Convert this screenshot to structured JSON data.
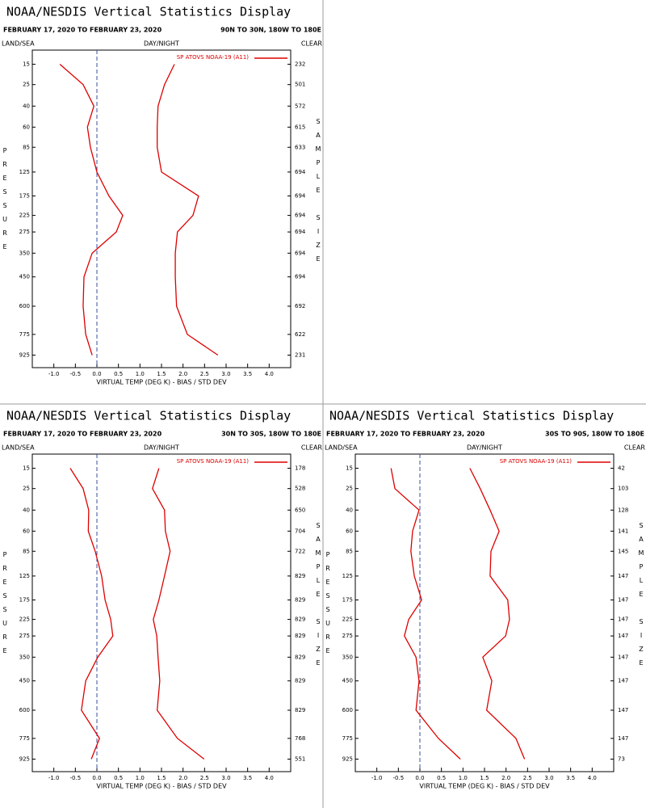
{
  "chart_data": [
    {
      "type": "line",
      "title": "NOAA/NESDIS Vertical Statistics Display",
      "subtitle": "FEBRUARY 17, 2020 TO FEBRUARY 23, 2020",
      "region": "90N TO 30N, 180W TO 180E",
      "header_left": "LAND/SEA",
      "header_center": "DAY/NIGHT",
      "header_right": "CLEAR",
      "y_label": "PRESSURE",
      "y2_label": "SAMPLE SIZE",
      "x_label": "VIRTUAL TEMP (DEG K) - BIAS / STD DEV",
      "y": [
        15,
        25,
        40,
        60,
        85,
        125,
        175,
        225,
        275,
        350,
        450,
        600,
        775,
        925
      ],
      "y2_labels": [
        232,
        501,
        572,
        615,
        633,
        694,
        694,
        694,
        694,
        694,
        694,
        692,
        622,
        231
      ],
      "ylim": [
        10,
        1025
      ],
      "yscale": "pressure-kappa",
      "xlim": [
        -1.5,
        4.5
      ],
      "xticks": [
        {
          "value": -1,
          "label": "-1.0"
        },
        -0.5,
        {
          "value": 0,
          "label": "0.0"
        },
        0.5,
        {
          "value": 1,
          "label": "1.0"
        },
        1.5,
        {
          "value": 2,
          "label": "2.0"
        },
        2.5,
        {
          "value": 3,
          "label": "3.0"
        },
        3.5,
        {
          "value": 4,
          "label": "4.0"
        }
      ],
      "zero_line": true,
      "zero_line_color": "#3a4fa0",
      "series": [
        {
          "name": "SP ATOVS NOAA-19 (A11)",
          "color": "#dd0000",
          "bias": [
            -0.86,
            -0.32,
            -0.07,
            -0.22,
            -0.15,
            0.0,
            0.28,
            0.6,
            0.45,
            -0.11,
            -0.3,
            -0.32,
            -0.26,
            -0.11
          ],
          "std_dev": [
            1.8,
            1.57,
            1.42,
            1.4,
            1.4,
            1.5,
            2.36,
            2.23,
            1.87,
            1.82,
            1.82,
            1.85,
            2.1,
            2.81
          ]
        }
      ]
    },
    {
      "type": "line",
      "title": "NOAA/NESDIS Vertical Statistics Display",
      "subtitle": "FEBRUARY 17, 2020 TO FEBRUARY 23, 2020",
      "region": "30N TO 30S, 180W TO 180E",
      "header_left": "LAND/SEA",
      "header_center": "DAY/NIGHT",
      "header_right": "CLEAR",
      "y_label": "PRESSURE",
      "y2_label": "SAMPLE SIZE",
      "x_label": "VIRTUAL TEMP (DEG K) - BIAS / STD DEV",
      "y": [
        15,
        25,
        40,
        60,
        85,
        125,
        175,
        225,
        275,
        350,
        450,
        600,
        775,
        925
      ],
      "y2_labels": [
        178,
        528,
        650,
        704,
        722,
        829,
        829,
        829,
        829,
        829,
        829,
        829,
        768,
        551
      ],
      "ylim": [
        10,
        1025
      ],
      "yscale": "pressure-kappa",
      "xlim": [
        -1.5,
        4.5
      ],
      "xticks": [
        {
          "value": -1,
          "label": "-1.0"
        },
        -0.5,
        {
          "value": 0,
          "label": "0.0"
        },
        0.5,
        {
          "value": 1,
          "label": "1.0"
        },
        1.5,
        {
          "value": 2,
          "label": "2.0"
        },
        2.5,
        {
          "value": 3,
          "label": "3.0"
        },
        3.5,
        {
          "value": 4,
          "label": "4.0"
        }
      ],
      "zero_line": true,
      "zero_line_color": "#3a4fa0",
      "series": [
        {
          "name": "SP ATOVS NOAA-19 (A11)",
          "color": "#dd0000",
          "bias": [
            -0.62,
            -0.32,
            -0.19,
            -0.2,
            -0.04,
            0.11,
            0.19,
            0.32,
            0.37,
            0.02,
            -0.26,
            -0.36,
            0.06,
            -0.13
          ],
          "std_dev": [
            1.44,
            1.29,
            1.57,
            1.59,
            1.7,
            1.57,
            1.44,
            1.31,
            1.39,
            1.42,
            1.46,
            1.4,
            1.87,
            2.49
          ]
        }
      ]
    },
    {
      "type": "line",
      "title": "NOAA/NESDIS Vertical Statistics Display",
      "subtitle": "FEBRUARY 17, 2020 TO FEBRUARY 23, 2020",
      "region": "30S TO 90S, 180W TO 180E",
      "header_left": "LAND/SEA",
      "header_center": "DAY/NIGHT",
      "header_right": "CLEAR",
      "y_label": "PRESSURE",
      "y2_label": "SAMPLE SIZE",
      "x_label": "VIRTUAL TEMP (DEG K) - BIAS / STD DEV",
      "y": [
        15,
        25,
        40,
        60,
        85,
        125,
        175,
        225,
        275,
        350,
        450,
        600,
        775,
        925
      ],
      "y2_labels": [
        42,
        103,
        128,
        141,
        145,
        147,
        147,
        147,
        147,
        147,
        147,
        147,
        147,
        73
      ],
      "ylim": [
        10,
        1025
      ],
      "yscale": "pressure-kappa",
      "xlim": [
        -1.5,
        4.5
      ],
      "xticks": [
        {
          "value": -1,
          "label": "-1.0"
        },
        -0.5,
        {
          "value": 0,
          "label": "0.0"
        },
        0.5,
        {
          "value": 1,
          "label": "1.0"
        },
        1.5,
        {
          "value": 2,
          "label": "2.0"
        },
        2.5,
        {
          "value": 3,
          "label": "3.0"
        },
        3.5,
        {
          "value": 4,
          "label": "4.0"
        }
      ],
      "zero_line": true,
      "zero_line_color": "#3a4fa0",
      "series": [
        {
          "name": "SP ATOVS NOAA-19 (A11)",
          "color": "#dd0000",
          "bias": [
            -0.67,
            -0.58,
            -0.02,
            -0.17,
            -0.21,
            -0.13,
            0.04,
            -0.26,
            -0.36,
            -0.09,
            -0.02,
            -0.09,
            0.43,
            0.94
          ],
          "std_dev": [
            1.16,
            1.4,
            1.63,
            1.84,
            1.65,
            1.63,
            2.04,
            2.08,
            1.99,
            1.46,
            1.67,
            1.55,
            2.23,
            2.43
          ]
        }
      ]
    }
  ]
}
